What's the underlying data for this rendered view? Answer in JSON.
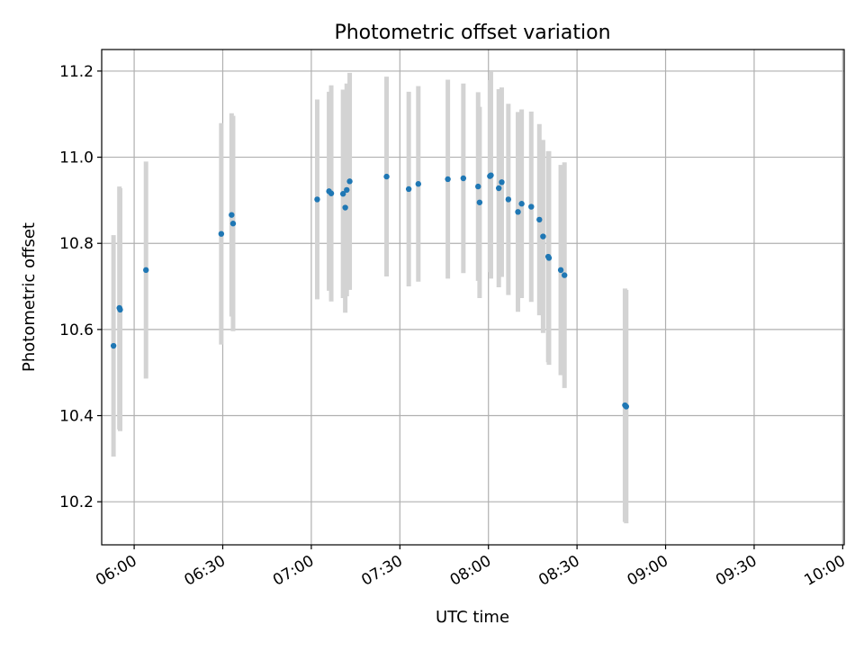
{
  "chart_data": {
    "type": "scatter",
    "title": "Photometric offset variation",
    "xlabel": "UTC time",
    "ylabel": "Photometric offset",
    "xlim": [
      "05:49",
      "10:00:30"
    ],
    "ylim": [
      10.1,
      11.25
    ],
    "x_ticks": [
      "06:00",
      "06:30",
      "07:00",
      "07:30",
      "08:00",
      "08:30",
      "09:00",
      "09:30",
      "10:00"
    ],
    "y_ticks": [
      10.2,
      10.4,
      10.6,
      10.8,
      11.0,
      11.2
    ],
    "y_tick_labels": [
      "10.2",
      "10.4",
      "10.6",
      "10.8",
      "11.0",
      "11.2"
    ],
    "grid": true,
    "legend": "none",
    "point_color": "#1f77b4",
    "errorbar_color": "#d3d3d3",
    "series": [
      {
        "points": [
          {
            "time": "05:53:00",
            "y": 10.562,
            "err": 0.257
          },
          {
            "time": "05:55:00",
            "y": 10.65,
            "err": 0.282
          },
          {
            "time": "05:55:15",
            "y": 10.646,
            "err": 0.282
          },
          {
            "time": "06:04:00",
            "y": 10.738,
            "err": 0.252
          },
          {
            "time": "06:29:30",
            "y": 10.822,
            "err": 0.257
          },
          {
            "time": "06:33:00",
            "y": 10.866,
            "err": 0.236
          },
          {
            "time": "06:33:30",
            "y": 10.846,
            "err": 0.25
          },
          {
            "time": "07:02:00",
            "y": 10.902,
            "err": 0.232
          },
          {
            "time": "07:06:00",
            "y": 10.921,
            "err": 0.231
          },
          {
            "time": "07:06:45",
            "y": 10.916,
            "err": 0.251
          },
          {
            "time": "07:10:45",
            "y": 10.915,
            "err": 0.242
          },
          {
            "time": "07:11:30",
            "y": 10.883,
            "err": 0.244
          },
          {
            "time": "07:12:00",
            "y": 10.924,
            "err": 0.247
          },
          {
            "time": "07:13:00",
            "y": 10.944,
            "err": 0.252
          },
          {
            "time": "07:25:30",
            "y": 10.955,
            "err": 0.232
          },
          {
            "time": "07:33:00",
            "y": 10.926,
            "err": 0.226
          },
          {
            "time": "07:36:15",
            "y": 10.938,
            "err": 0.227
          },
          {
            "time": "07:46:15",
            "y": 10.949,
            "err": 0.231
          },
          {
            "time": "07:51:30",
            "y": 10.951,
            "err": 0.22
          },
          {
            "time": "07:56:30",
            "y": 10.932,
            "err": 0.219
          },
          {
            "time": "07:57:00",
            "y": 10.895,
            "err": 0.222
          },
          {
            "time": "08:00:30",
            "y": 10.956,
            "err": 0.223
          },
          {
            "time": "08:00:50",
            "y": 10.958,
            "err": 0.24
          },
          {
            "time": "08:03:30",
            "y": 10.928,
            "err": 0.23
          },
          {
            "time": "08:04:30",
            "y": 10.942,
            "err": 0.22
          },
          {
            "time": "08:06:45",
            "y": 10.902,
            "err": 0.222
          },
          {
            "time": "08:10:00",
            "y": 10.873,
            "err": 0.232
          },
          {
            "time": "08:11:15",
            "y": 10.892,
            "err": 0.219
          },
          {
            "time": "08:14:30",
            "y": 10.885,
            "err": 0.221
          },
          {
            "time": "08:17:15",
            "y": 10.855,
            "err": 0.222
          },
          {
            "time": "08:18:30",
            "y": 10.816,
            "err": 0.224
          },
          {
            "time": "08:20:15",
            "y": 10.769,
            "err": 0.245
          },
          {
            "time": "08:20:30",
            "y": 10.766,
            "err": 0.248
          },
          {
            "time": "08:24:30",
            "y": 10.738,
            "err": 0.244
          },
          {
            "time": "08:25:45",
            "y": 10.726,
            "err": 0.262
          },
          {
            "time": "08:46:15",
            "y": 10.424,
            "err": 0.271
          },
          {
            "time": "08:46:40",
            "y": 10.421,
            "err": 0.271
          }
        ]
      }
    ]
  }
}
